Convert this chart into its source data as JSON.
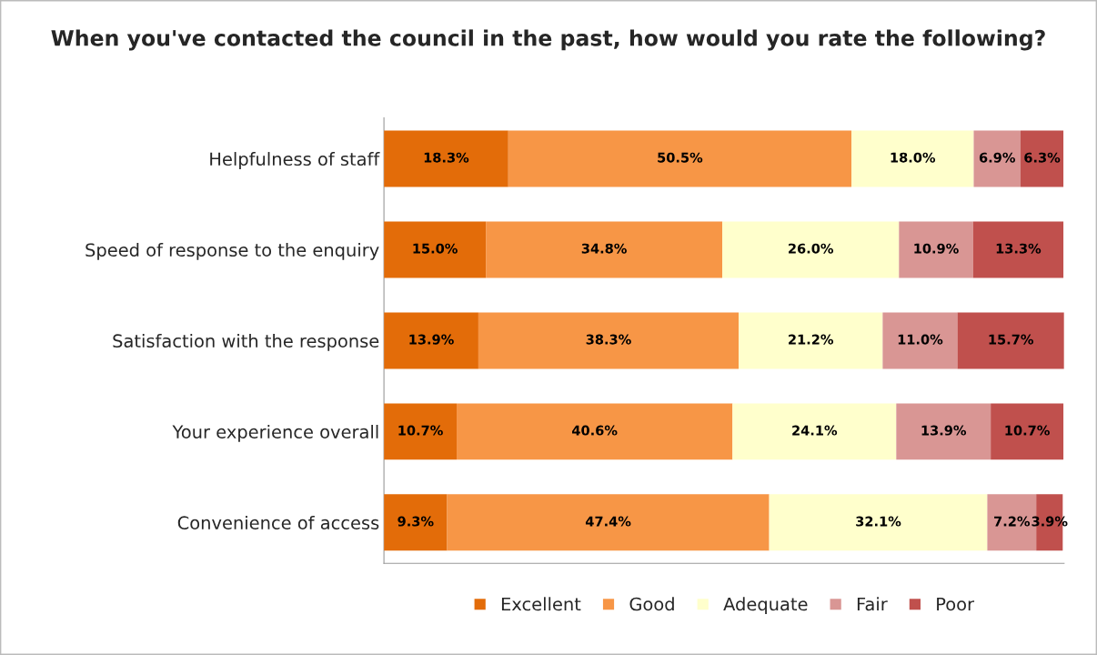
{
  "chart_data": {
    "type": "bar",
    "orientation": "horizontal",
    "stacked": true,
    "title": "When you've contacted the council in the past, how would you rate the following?",
    "categories": [
      "Helpfulness of staff",
      "Speed of response to the enquiry",
      "Satisfaction with the response",
      "Your experience overall",
      "Convenience of access"
    ],
    "series": [
      {
        "name": "Excellent",
        "color": "#e36c09",
        "values": [
          18.3,
          15.0,
          13.9,
          10.7,
          9.3
        ],
        "value_labels": [
          "18.3%",
          "15.0%",
          "13.9%",
          "10.7%",
          "9.3%"
        ]
      },
      {
        "name": "Good",
        "color": "#f79646",
        "values": [
          50.5,
          34.8,
          38.3,
          40.6,
          47.4
        ],
        "value_labels": [
          "50.5%",
          "34.8%",
          "38.3%",
          "40.6%",
          "47.4%"
        ]
      },
      {
        "name": "Adequate",
        "color": "#ffffcc",
        "values": [
          18.0,
          26.0,
          21.2,
          24.1,
          32.1
        ],
        "value_labels": [
          "18.0%",
          "26.0%",
          "21.2%",
          "24.1%",
          "32.1%"
        ]
      },
      {
        "name": "Fair",
        "color": "#d99694",
        "values": [
          6.9,
          10.9,
          11.0,
          13.9,
          7.2
        ],
        "value_labels": [
          "6.9%",
          "10.9%",
          "11.0%",
          "13.9%",
          "7.2%"
        ]
      },
      {
        "name": "Poor",
        "color": "#c0504d",
        "values": [
          6.3,
          13.3,
          15.7,
          10.7,
          3.9
        ],
        "value_labels": [
          "6.3%",
          "13.3%",
          "15.7%",
          "10.7%",
          "3.9%"
        ]
      }
    ],
    "tick_labels": "y",
    "legend": "bottom"
  }
}
